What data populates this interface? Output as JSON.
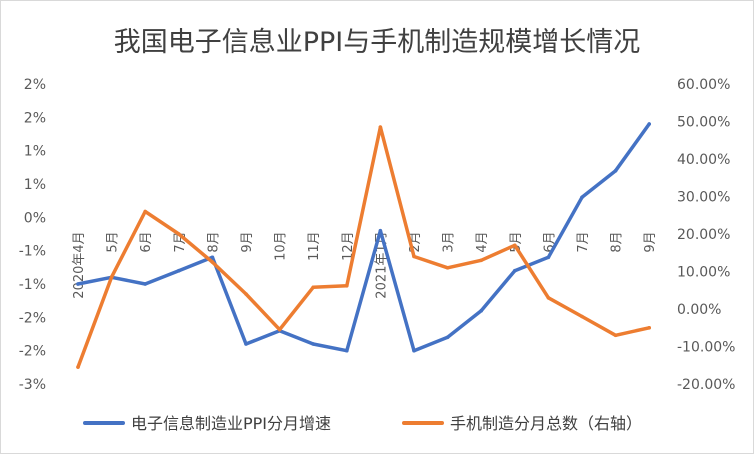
{
  "chart_data": {
    "type": "line",
    "title": "我国电子信息业PPI与手机制造规模增长情况",
    "categories": [
      "2020年4月",
      "5月",
      "6月",
      "7月",
      "8月",
      "9月",
      "10月",
      "11月",
      "12月",
      "2021年1月",
      "2月",
      "3月",
      "4月",
      "5月",
      "6月",
      "7月",
      "8月",
      "9月"
    ],
    "left_axis": {
      "tick_labels": [
        "2%",
        "2%",
        "1%",
        "1%",
        "0%",
        "-1%",
        "-1%",
        "-2%",
        "-2%",
        "-3%"
      ],
      "ylim": [
        -2.5,
        2.0
      ]
    },
    "right_axis": {
      "tick_labels": [
        "60.00%",
        "50.00%",
        "40.00%",
        "30.00%",
        "20.00%",
        "10.00%",
        "0.00%",
        "-10.00%",
        "-20.00%"
      ],
      "ylim": [
        -20,
        60
      ]
    },
    "series": [
      {
        "name": "电子信息制造业PPI分月增速",
        "axis": "left",
        "color": "#4472C4",
        "values": [
          -1.0,
          -0.9,
          -1.0,
          -0.8,
          -0.6,
          -1.9,
          -1.7,
          -1.9,
          -2.0,
          -0.2,
          -2.0,
          -1.8,
          -1.4,
          -0.8,
          -0.6,
          0.3,
          0.7,
          1.4
        ]
      },
      {
        "name": "手机制造分月总数（右轴）",
        "axis": "right",
        "color": "#ED7D31",
        "values": [
          -15.5,
          8.5,
          26.0,
          20.0,
          12.5,
          4.0,
          -5.5,
          5.8,
          6.2,
          48.5,
          14.0,
          11.0,
          13.0,
          17.0,
          3.0,
          -2.0,
          -7.0,
          -5.0
        ]
      }
    ],
    "grid": false,
    "legend": "bottom"
  }
}
